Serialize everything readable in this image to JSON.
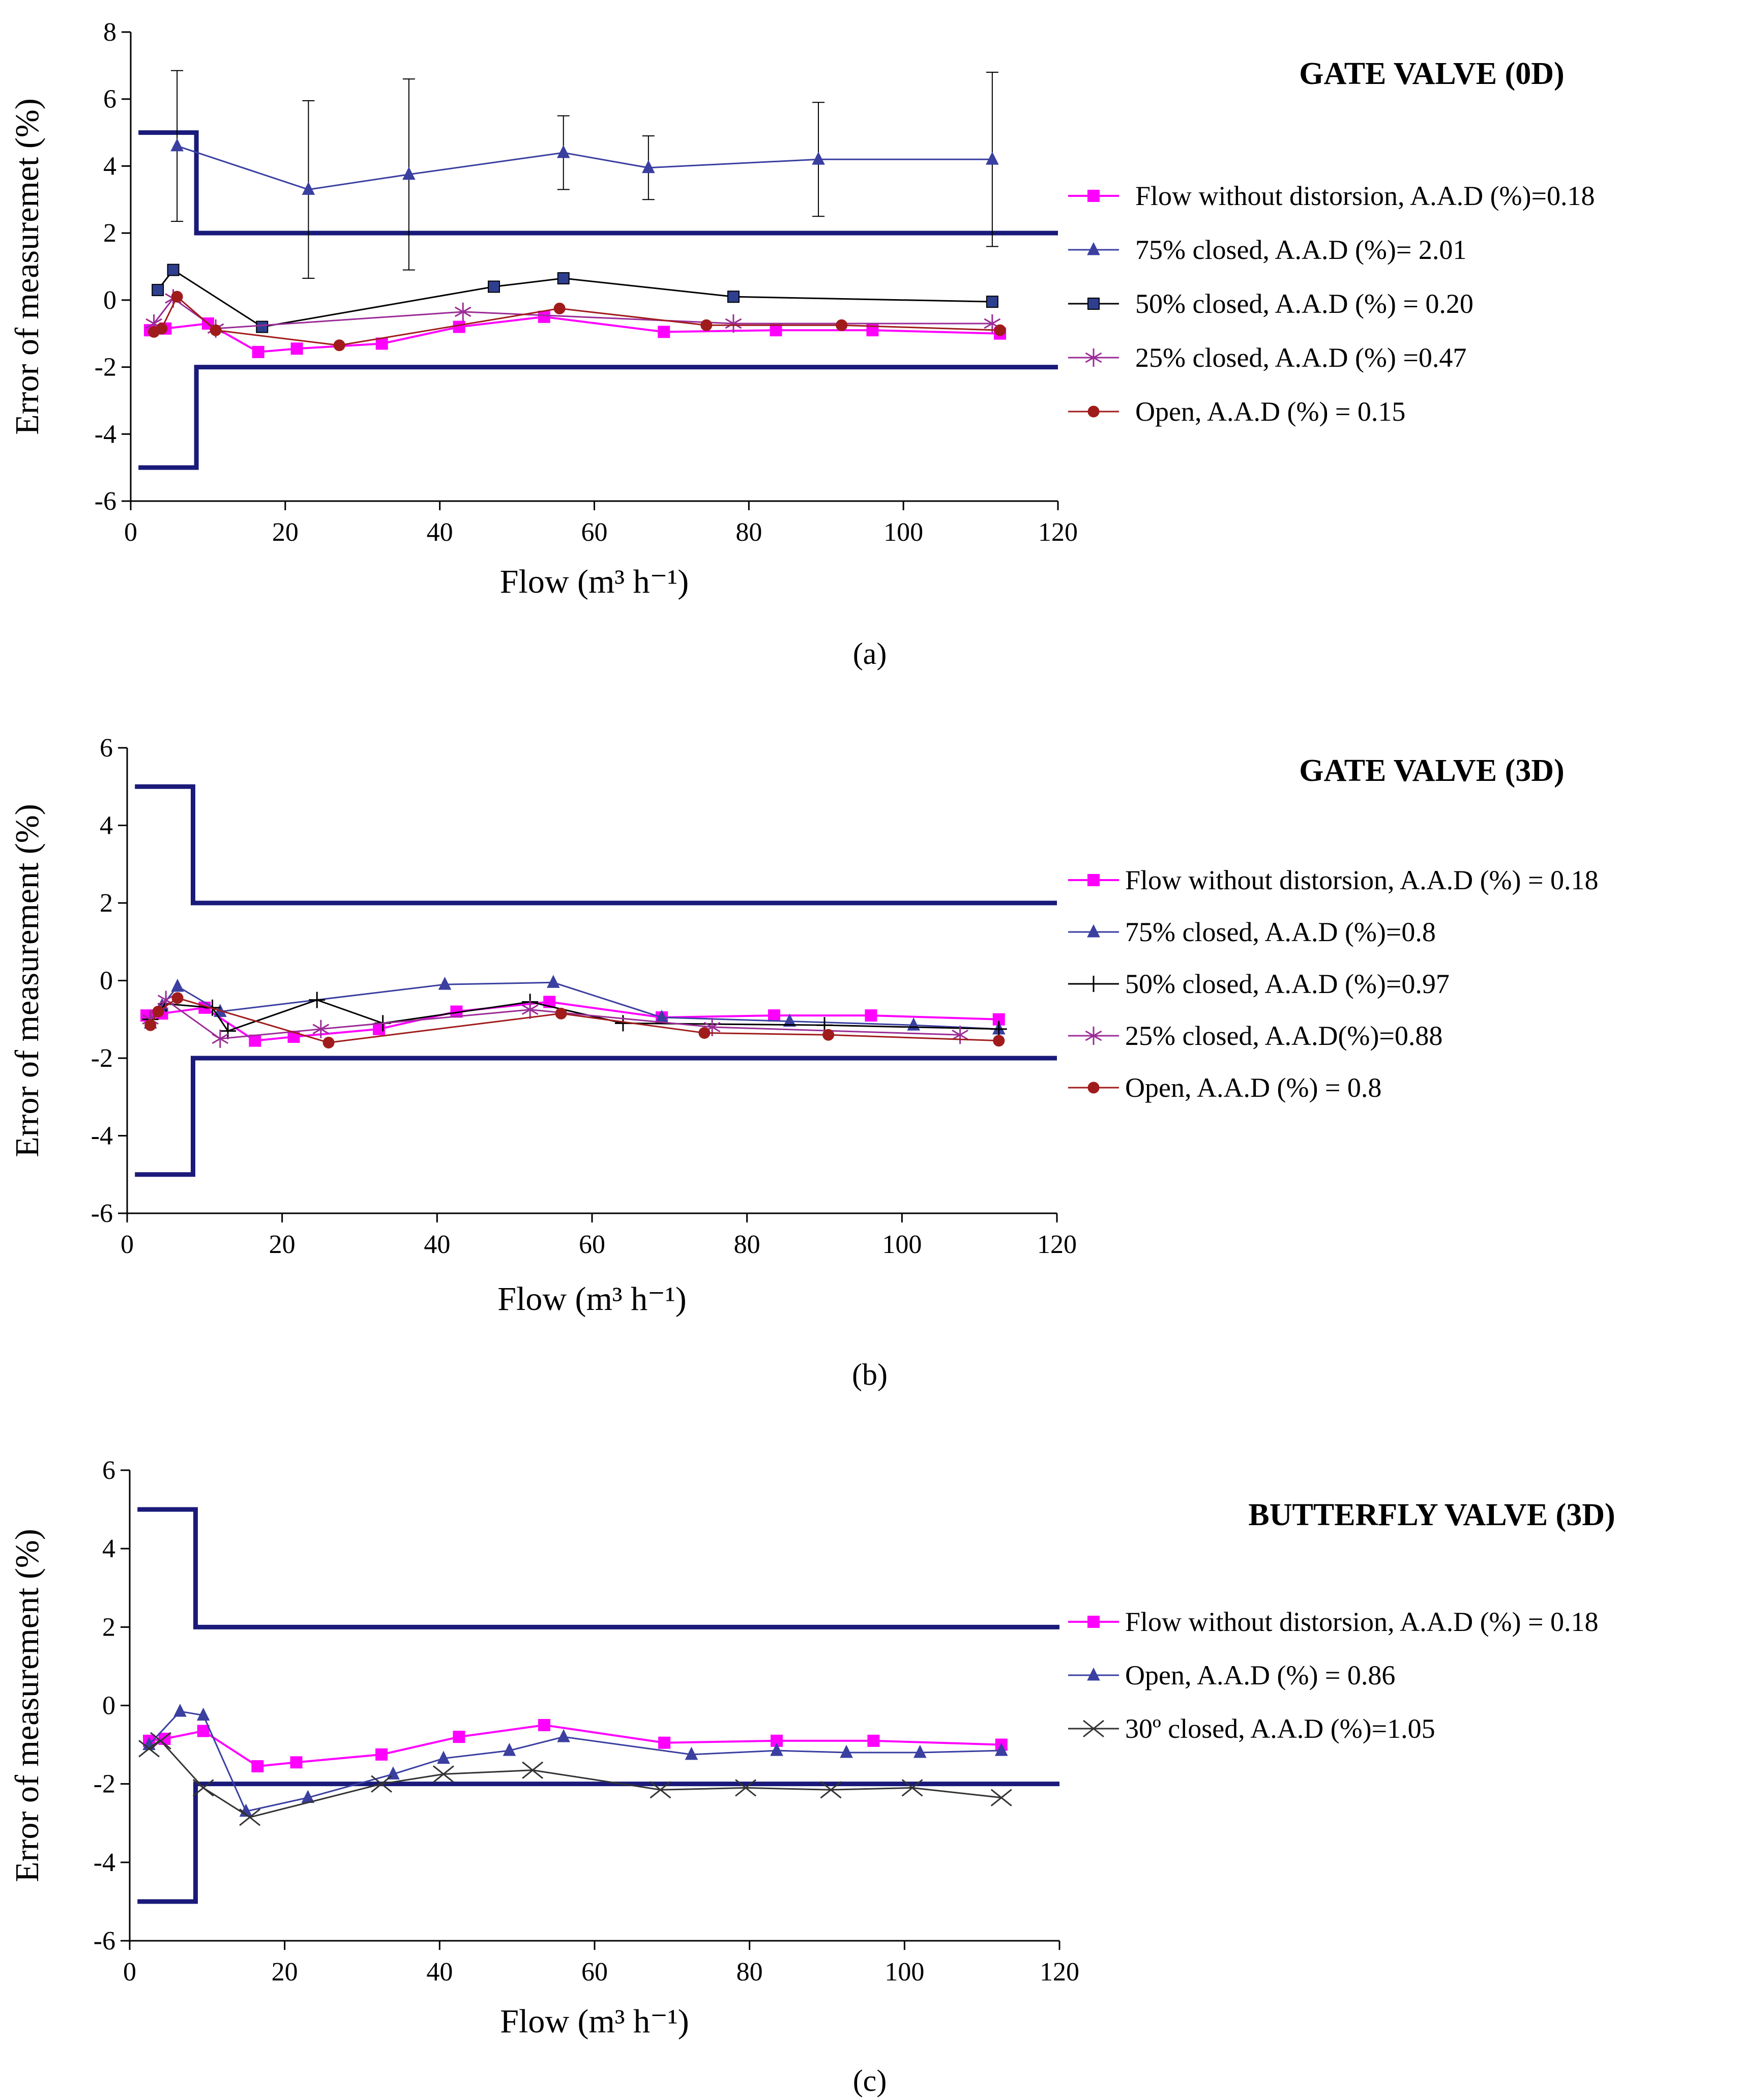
{
  "figure": {
    "panel_captions": [
      "(a)",
      "(b)",
      "(c)"
    ]
  },
  "chart_data": [
    {
      "id": "a",
      "type": "line",
      "title": "GATE VALVE (0D)",
      "caption_letter": "a",
      "xlabel": "Flow (m³ h⁻¹)",
      "ylabel": "Error of measuremet (%)",
      "xlim": [
        0,
        120
      ],
      "ylim": [
        -6,
        8
      ],
      "xticks": [
        0,
        20,
        40,
        60,
        80,
        100,
        120
      ],
      "yticks": [
        -6,
        -4,
        -2,
        0,
        2,
        4,
        6,
        8
      ],
      "limits": [
        {
          "name": "upper tolerance limit",
          "points": [
            [
              1,
              5
            ],
            [
              8.5,
              5
            ],
            [
              8.5,
              2
            ],
            [
              120,
              2
            ]
          ]
        },
        {
          "name": "lower tolerance limit",
          "points": [
            [
              1,
              -5
            ],
            [
              8.5,
              -5
            ],
            [
              8.5,
              -2
            ],
            [
              120,
              -2
            ]
          ]
        }
      ],
      "series": [
        {
          "name": "Flow without distorsion, A.A.D (%)=0.18",
          "color": "#ff00ff",
          "marker": "square",
          "width": 4,
          "x": [
            2.5,
            4.5,
            10,
            16.5,
            21.5,
            32.5,
            42.5,
            53.5,
            69,
            83.5,
            96,
            112.5
          ],
          "y": [
            -0.9,
            -0.85,
            -0.7,
            -1.55,
            -1.45,
            -1.3,
            -0.8,
            -0.5,
            -0.95,
            -0.9,
            -0.9,
            -1.0
          ]
        },
        {
          "name": "75% closed, A.A.D (%)= 2.01",
          "color": "#3a3fa0",
          "marker": "triangle",
          "width": 3,
          "x": [
            6,
            23,
            36,
            56,
            67,
            89,
            111.5
          ],
          "y": [
            4.6,
            3.3,
            3.75,
            4.4,
            3.95,
            4.2,
            4.2
          ],
          "err": [
            2.25,
            2.65,
            2.85,
            1.1,
            0.95,
            1.7,
            2.6
          ]
        },
        {
          "name": "50% closed, A.A.D (%) = 0.20",
          "color": "#000000",
          "marker": "square-dark",
          "width": 3,
          "x": [
            3.5,
            5.5,
            17,
            47,
            56,
            78,
            111.5
          ],
          "y": [
            0.3,
            0.9,
            -0.8,
            0.4,
            0.65,
            0.1,
            -0.05
          ]
        },
        {
          "name": "25% closed, A.A.D (%) =0.47",
          "color": "#9b2c96",
          "marker": "asterisk",
          "width": 3,
          "x": [
            3,
            5.5,
            11,
            43,
            78,
            111.5
          ],
          "y": [
            -0.7,
            0.05,
            -0.85,
            -0.35,
            -0.7,
            -0.7
          ]
        },
        {
          "name": "Open, A.A.D (%) = 0.15",
          "color": "#a01c1c",
          "marker": "circle",
          "width": 3,
          "x": [
            3,
            4,
            6,
            11,
            27,
            55.5,
            74.5,
            92,
            112.5
          ],
          "y": [
            -0.95,
            -0.85,
            0.1,
            -0.9,
            -1.35,
            -0.25,
            -0.75,
            -0.75,
            -0.9
          ]
        }
      ]
    },
    {
      "id": "b",
      "type": "line",
      "title": "GATE VALVE (3D)",
      "caption_letter": "b",
      "xlabel": "Flow (m³ h⁻¹)",
      "ylabel": "Error of measurement (%)",
      "xlim": [
        0,
        120
      ],
      "ylim": [
        -6,
        6
      ],
      "xticks": [
        0,
        20,
        40,
        60,
        80,
        100,
        120
      ],
      "yticks": [
        -6,
        -4,
        -2,
        0,
        2,
        4,
        6
      ],
      "limits": [
        {
          "name": "upper tolerance limit",
          "points": [
            [
              1,
              5
            ],
            [
              8.5,
              5
            ],
            [
              8.5,
              2
            ],
            [
              120,
              2
            ]
          ]
        },
        {
          "name": "lower tolerance limit",
          "points": [
            [
              1,
              -5
            ],
            [
              8.5,
              -5
            ],
            [
              8.5,
              -2
            ],
            [
              120,
              -2
            ]
          ]
        }
      ],
      "series": [
        {
          "name": "Flow without distorsion, A.A.D (%) = 0.18",
          "color": "#ff00ff",
          "marker": "square",
          "width": 4,
          "x": [
            2.5,
            4.5,
            10,
            16.5,
            21.5,
            32.5,
            42.5,
            54.5,
            69,
            83.5,
            96,
            112.5
          ],
          "y": [
            -0.9,
            -0.85,
            -0.7,
            -1.55,
            -1.45,
            -1.25,
            -0.8,
            -0.55,
            -0.95,
            -0.9,
            -0.9,
            -1.0
          ]
        },
        {
          "name": "75% closed, A.A.D (%)=0.8",
          "color": "#3a3fa0",
          "marker": "triangle",
          "width": 3,
          "x": [
            3,
            4.5,
            6.5,
            12,
            41,
            55,
            69,
            85.5,
            101.5,
            112.5
          ],
          "y": [
            -1.1,
            -0.65,
            -0.15,
            -0.8,
            -0.1,
            -0.05,
            -0.95,
            -1.05,
            -1.15,
            -1.25
          ]
        },
        {
          "name": "50% closed, A.A.D (%)=0.97",
          "color": "#000000",
          "marker": "plus",
          "width": 3,
          "x": [
            3,
            5,
            11,
            13,
            24.5,
            33,
            52,
            64,
            90,
            112.5
          ],
          "y": [
            -1.0,
            -0.6,
            -0.7,
            -1.3,
            -0.5,
            -1.1,
            -0.55,
            -1.1,
            -1.15,
            -1.25
          ]
        },
        {
          "name": "25% closed, A.A.D(%)=0.88",
          "color": "#9b2c96",
          "marker": "asterisk",
          "width": 3,
          "x": [
            3,
            5,
            12,
            25,
            52,
            75.5,
            107.5
          ],
          "y": [
            -1.0,
            -0.5,
            -1.5,
            -1.25,
            -0.75,
            -1.2,
            -1.4
          ]
        },
        {
          "name": "Open, A.A.D (%) = 0.8",
          "color": "#a01c1c",
          "marker": "circle",
          "width": 3,
          "x": [
            3,
            4,
            6.5,
            26,
            56,
            74.5,
            90.5,
            112.5
          ],
          "y": [
            -1.15,
            -0.8,
            -0.45,
            -1.6,
            -0.85,
            -1.35,
            -1.4,
            -1.55
          ]
        }
      ]
    },
    {
      "id": "c",
      "type": "line",
      "title": "BUTTERFLY VALVE (3D)",
      "caption_letter": "c",
      "xlabel": "Flow (m³ h⁻¹)",
      "ylabel": "Error of measurement (%)",
      "xlim": [
        0,
        120
      ],
      "ylim": [
        -6,
        6
      ],
      "xticks": [
        0,
        20,
        40,
        60,
        80,
        100,
        120
      ],
      "yticks": [
        -6,
        -4,
        -2,
        0,
        2,
        4,
        6
      ],
      "limits": [
        {
          "name": "upper tolerance limit",
          "points": [
            [
              1,
              5
            ],
            [
              8.5,
              5
            ],
            [
              8.5,
              2
            ],
            [
              120,
              2
            ]
          ]
        },
        {
          "name": "lower tolerance limit",
          "points": [
            [
              1,
              -5
            ],
            [
              8.5,
              -5
            ],
            [
              8.5,
              -2
            ],
            [
              120,
              -2
            ]
          ]
        }
      ],
      "series": [
        {
          "name": "Flow without distorsion, A.A.D (%) = 0.18",
          "color": "#ff00ff",
          "marker": "square",
          "width": 4,
          "x": [
            2.5,
            4.5,
            9.5,
            16.5,
            21.5,
            32.5,
            42.5,
            53.5,
            69,
            83.5,
            96,
            112.5
          ],
          "y": [
            -0.9,
            -0.85,
            -0.65,
            -1.55,
            -1.45,
            -1.25,
            -0.8,
            -0.5,
            -0.95,
            -0.9,
            -0.9,
            -1.0
          ]
        },
        {
          "name": "Open, A.A.D (%) = 0.86",
          "color": "#3a3fa0",
          "marker": "triangle",
          "width": 3,
          "x": [
            2.5,
            6.5,
            9.5,
            15,
            23,
            34,
            40.5,
            49,
            56,
            72.5,
            83.5,
            92.5,
            102,
            112.5
          ],
          "y": [
            -1.0,
            -0.15,
            -0.25,
            -2.7,
            -2.35,
            -1.75,
            -1.35,
            -1.15,
            -0.8,
            -1.25,
            -1.15,
            -1.2,
            -1.2,
            -1.15
          ]
        },
        {
          "name": "30º closed, A.A.D (%)=1.05",
          "color": "#333333",
          "marker": "x",
          "width": 3,
          "x": [
            2.5,
            4,
            9.5,
            15.5,
            32.5,
            40.5,
            52,
            68.5,
            79.5,
            90.5,
            101,
            112.5
          ],
          "y": [
            -1.1,
            -0.9,
            -2.1,
            -2.85,
            -2.0,
            -1.75,
            -1.65,
            -2.15,
            -2.1,
            -2.15,
            -2.1,
            -2.35
          ]
        }
      ]
    }
  ]
}
